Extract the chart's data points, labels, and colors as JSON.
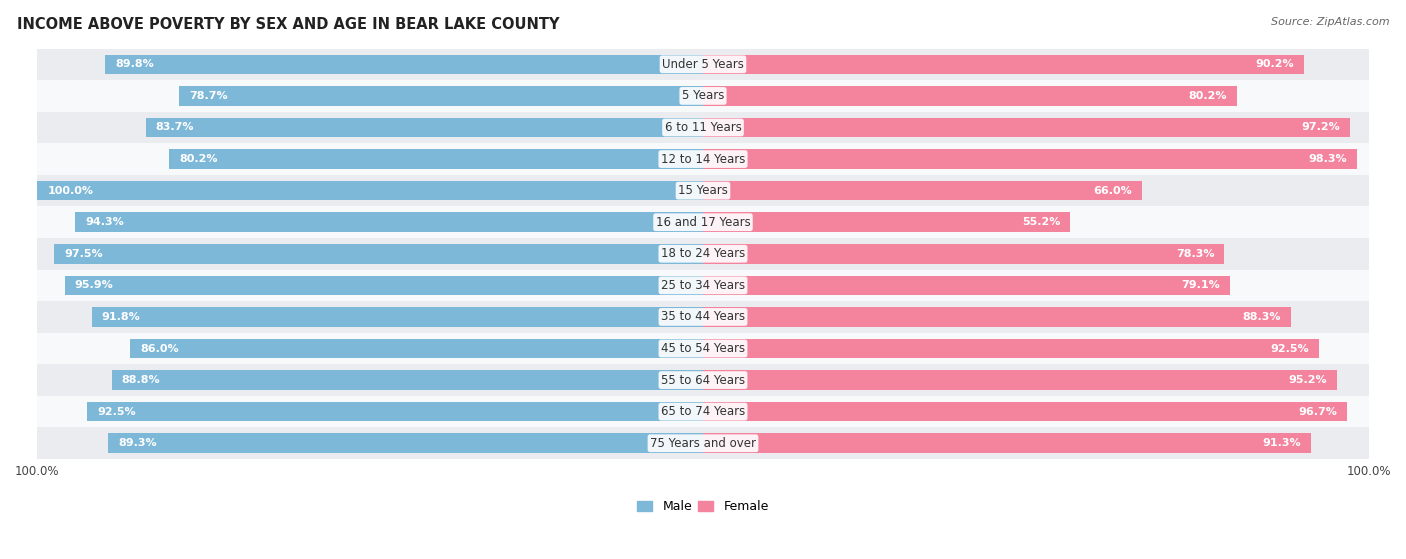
{
  "title": "INCOME ABOVE POVERTY BY SEX AND AGE IN BEAR LAKE COUNTY",
  "source": "Source: ZipAtlas.com",
  "categories": [
    "Under 5 Years",
    "5 Years",
    "6 to 11 Years",
    "12 to 14 Years",
    "15 Years",
    "16 and 17 Years",
    "18 to 24 Years",
    "25 to 34 Years",
    "35 to 44 Years",
    "45 to 54 Years",
    "55 to 64 Years",
    "65 to 74 Years",
    "75 Years and over"
  ],
  "male_values": [
    89.8,
    78.7,
    83.7,
    80.2,
    100.0,
    94.3,
    97.5,
    95.9,
    91.8,
    86.0,
    88.8,
    92.5,
    89.3
  ],
  "female_values": [
    90.2,
    80.2,
    97.2,
    98.3,
    66.0,
    55.2,
    78.3,
    79.1,
    88.3,
    92.5,
    95.2,
    96.7,
    91.3
  ],
  "male_color": "#7eb8d9",
  "female_color": "#f4849e",
  "male_label": "Male",
  "female_label": "Female",
  "bar_height": 0.62,
  "row_bg_light": "#eaecf0",
  "row_bg_white": "#f8f9fb",
  "title_fontsize": 10.5,
  "label_fontsize": 8.5,
  "value_fontsize": 8,
  "source_fontsize": 8
}
